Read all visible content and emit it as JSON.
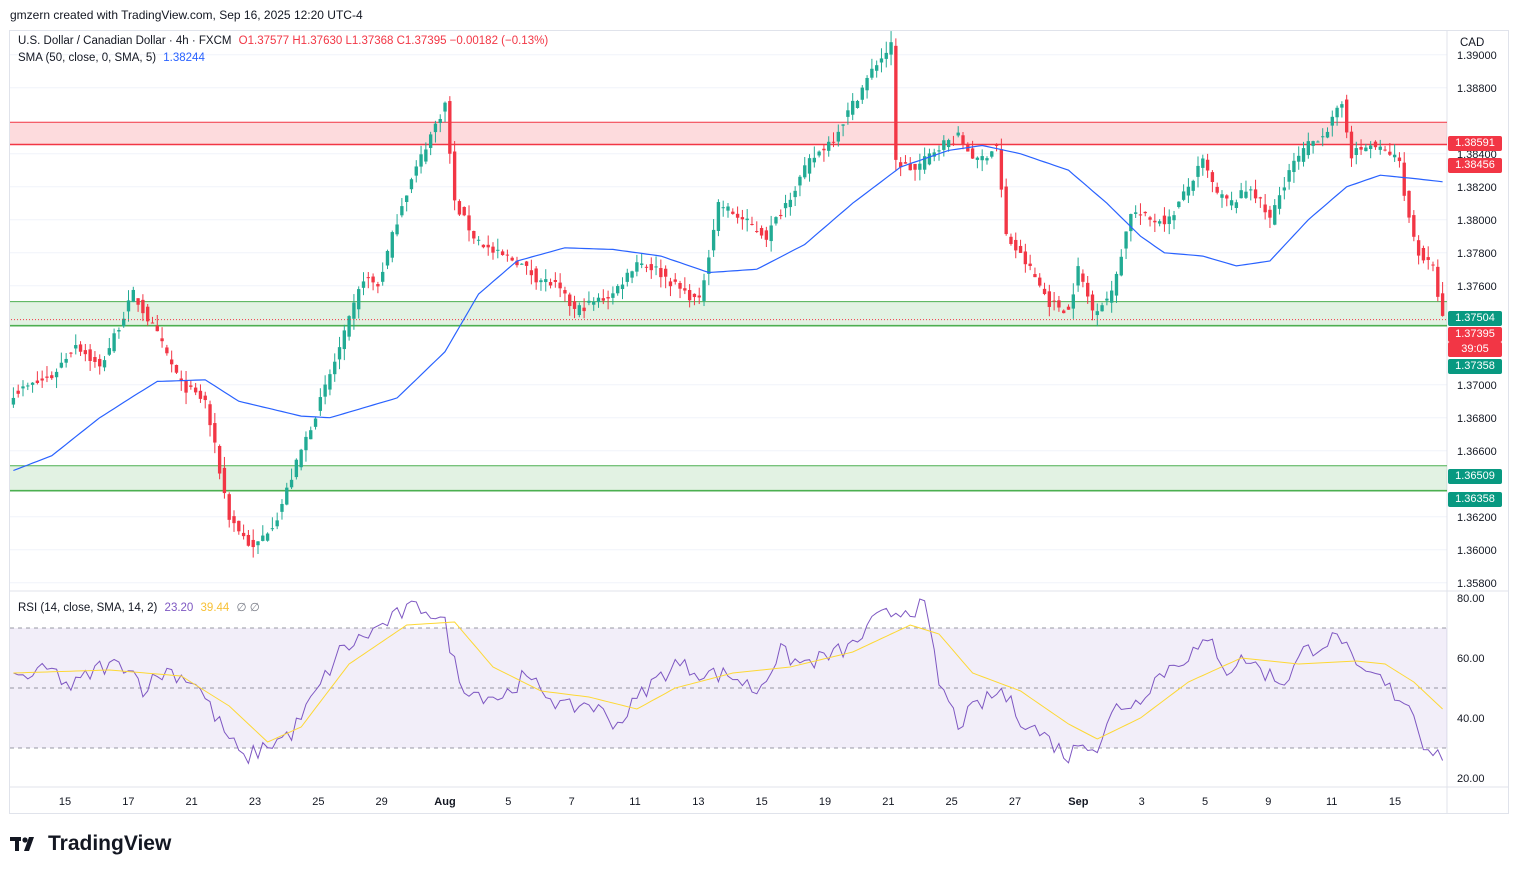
{
  "header": {
    "credit": "gmzern created with TradingView.com, Sep 16, 2025 12:20 UTC-4"
  },
  "legend": {
    "symbol": "U.S. Dollar / Canadian Dollar · 4h · FXCM",
    "ohlc": "O1.37577 H1.37630 L1.37368 C1.37395 −0.00182 (−0.13%)",
    "sma_label": "SMA (50, close, 0, SMA, 5)",
    "sma_value": "1.38244",
    "rsi_label": "RSI (14, close, SMA, 14, 2)",
    "rsi_value": "23.20",
    "rsi_ma_value": "39.44",
    "rsi_extra": "∅ ∅"
  },
  "currency": "CAD",
  "brand": "TradingView",
  "tags": {
    "r1": "1.38591",
    "r2": "1.38456",
    "s1": "1.37504",
    "last": "1.37395",
    "countdown": "39:05",
    "s2": "1.37358",
    "s3": "1.36509",
    "s4": "1.36358"
  },
  "colors": {
    "up": "#22ab94",
    "down": "#f23645",
    "sma": "#2962ff",
    "rsi": "#7e57c2",
    "rsi_ma": "#fdd835"
  },
  "chart_data": {
    "type": "candlestick",
    "price_axis": {
      "ticks": [
        "1.39000",
        "1.38800",
        "1.38400",
        "1.38200",
        "1.38000",
        "1.37800",
        "1.37600",
        "1.37000",
        "1.36800",
        "1.36600",
        "1.36200",
        "1.36000",
        "1.35800"
      ],
      "range": [
        1.3575,
        1.3915
      ]
    },
    "time_axis": [
      "15",
      "17",
      "21",
      "23",
      "25",
      "29",
      "Aug",
      "5",
      "7",
      "11",
      "13",
      "15",
      "19",
      "21",
      "25",
      "27",
      "Sep",
      "3",
      "5",
      "9",
      "11",
      "15"
    ],
    "zones": [
      {
        "kind": "resistance",
        "top": 1.38591,
        "bottom": 1.38456
      },
      {
        "kind": "support",
        "top": 1.37504,
        "bottom": 1.37358
      },
      {
        "kind": "support",
        "top": 1.36509,
        "bottom": 1.36358
      }
    ],
    "close_keypoints": [
      [
        0,
        1.3695
      ],
      [
        8,
        1.3705
      ],
      [
        13,
        1.3725
      ],
      [
        18,
        1.371
      ],
      [
        25,
        1.3755
      ],
      [
        30,
        1.373
      ],
      [
        35,
        1.37
      ],
      [
        40,
        1.369
      ],
      [
        45,
        1.362
      ],
      [
        50,
        1.36
      ],
      [
        55,
        1.362
      ],
      [
        60,
        1.366
      ],
      [
        64,
        1.369
      ],
      [
        69,
        1.373
      ],
      [
        73,
        1.3765
      ],
      [
        76,
        1.376
      ],
      [
        81,
        1.381
      ],
      [
        86,
        1.3845
      ],
      [
        90,
        1.387
      ],
      [
        92,
        1.381
      ],
      [
        96,
        1.379
      ],
      [
        100,
        1.378
      ],
      [
        105,
        1.3775
      ],
      [
        109,
        1.3765
      ],
      [
        113,
        1.376
      ],
      [
        117,
        1.3745
      ],
      [
        121,
        1.375
      ],
      [
        125,
        1.3755
      ],
      [
        130,
        1.3775
      ],
      [
        134,
        1.377
      ],
      [
        138,
        1.376
      ],
      [
        143,
        1.375
      ],
      [
        147,
        1.381
      ],
      [
        152,
        1.38
      ],
      [
        157,
        1.379
      ],
      [
        161,
        1.381
      ],
      [
        166,
        1.3835
      ],
      [
        171,
        1.385
      ],
      [
        175,
        1.387
      ],
      [
        180,
        1.3895
      ],
      [
        183,
        1.3905
      ],
      [
        184,
        1.3835
      ],
      [
        188,
        1.383
      ],
      [
        193,
        1.3845
      ],
      [
        197,
        1.385
      ],
      [
        201,
        1.3835
      ],
      [
        205,
        1.3845
      ],
      [
        207,
        1.379
      ],
      [
        212,
        1.377
      ],
      [
        216,
        1.375
      ],
      [
        220,
        1.3745
      ],
      [
        222,
        1.377
      ],
      [
        225,
        1.3745
      ],
      [
        229,
        1.3755
      ],
      [
        233,
        1.3805
      ],
      [
        237,
        1.38
      ],
      [
        241,
        1.38
      ],
      [
        245,
        1.382
      ],
      [
        248,
        1.3835
      ],
      [
        251,
        1.3815
      ],
      [
        254,
        1.381
      ],
      [
        258,
        1.382
      ],
      [
        262,
        1.38
      ],
      [
        266,
        1.383
      ],
      [
        270,
        1.3845
      ],
      [
        274,
        1.3855
      ],
      [
        277,
        1.387
      ],
      [
        279,
        1.384
      ],
      [
        283,
        1.3845
      ],
      [
        287,
        1.384
      ],
      [
        289,
        1.3835
      ],
      [
        291,
        1.38
      ],
      [
        293,
        1.378
      ],
      [
        296,
        1.377
      ],
      [
        298,
        1.374
      ]
    ],
    "sma50_keypoints": [
      [
        0,
        1.3648
      ],
      [
        8,
        1.3657
      ],
      [
        18,
        1.368
      ],
      [
        25,
        1.3693
      ],
      [
        30,
        1.3702
      ],
      [
        40,
        1.3703
      ],
      [
        47,
        1.369
      ],
      [
        60,
        1.3681
      ],
      [
        66,
        1.368
      ],
      [
        80,
        1.3692
      ],
      [
        90,
        1.372
      ],
      [
        97,
        1.3755
      ],
      [
        105,
        1.3775
      ],
      [
        115,
        1.3783
      ],
      [
        125,
        1.3782
      ],
      [
        135,
        1.3778
      ],
      [
        145,
        1.3768
      ],
      [
        155,
        1.377
      ],
      [
        165,
        1.3785
      ],
      [
        175,
        1.381
      ],
      [
        185,
        1.3832
      ],
      [
        195,
        1.3842
      ],
      [
        202,
        1.3845
      ],
      [
        210,
        1.384
      ],
      [
        220,
        1.383
      ],
      [
        228,
        1.381
      ],
      [
        235,
        1.379
      ],
      [
        240,
        1.378
      ],
      [
        248,
        1.3778
      ],
      [
        255,
        1.3772
      ],
      [
        262,
        1.3775
      ],
      [
        270,
        1.38
      ],
      [
        278,
        1.382
      ],
      [
        285,
        1.3827
      ],
      [
        292,
        1.3825
      ],
      [
        298,
        1.3823
      ]
    ],
    "rsi": {
      "ticks": [
        "80.00",
        "60.00",
        "40.00",
        "20.00"
      ],
      "range": [
        17,
        82
      ],
      "bands": [
        70,
        50,
        30
      ],
      "keypoints": [
        [
          0,
          53
        ],
        [
          8,
          56
        ],
        [
          12,
          50
        ],
        [
          18,
          57
        ],
        [
          24,
          58
        ],
        [
          27,
          50
        ],
        [
          32,
          56
        ],
        [
          38,
          52
        ],
        [
          43,
          38
        ],
        [
          48,
          26
        ],
        [
          52,
          30
        ],
        [
          58,
          35
        ],
        [
          63,
          48
        ],
        [
          68,
          62
        ],
        [
          74,
          68
        ],
        [
          78,
          72
        ],
        [
          82,
          76
        ],
        [
          86,
          77
        ],
        [
          90,
          71
        ],
        [
          93,
          52
        ],
        [
          97,
          48
        ],
        [
          102,
          47
        ],
        [
          106,
          53
        ],
        [
          110,
          50
        ],
        [
          115,
          43
        ],
        [
          120,
          45
        ],
        [
          126,
          38
        ],
        [
          132,
          50
        ],
        [
          138,
          58
        ],
        [
          144,
          55
        ],
        [
          150,
          54
        ],
        [
          155,
          49
        ],
        [
          160,
          62
        ],
        [
          164,
          58
        ],
        [
          169,
          60
        ],
        [
          175,
          64
        ],
        [
          180,
          73
        ],
        [
          185,
          76
        ],
        [
          190,
          77
        ],
        [
          193,
          52
        ],
        [
          197,
          38
        ],
        [
          201,
          44
        ],
        [
          206,
          49
        ],
        [
          210,
          40
        ],
        [
          215,
          34
        ],
        [
          220,
          27
        ],
        [
          223,
          33
        ],
        [
          226,
          30
        ],
        [
          230,
          44
        ],
        [
          234,
          45
        ],
        [
          238,
          53
        ],
        [
          242,
          58
        ],
        [
          246,
          62
        ],
        [
          250,
          65
        ],
        [
          253,
          56
        ],
        [
          257,
          60
        ],
        [
          261,
          55
        ],
        [
          265,
          52
        ],
        [
          269,
          62
        ],
        [
          273,
          65
        ],
        [
          277,
          67
        ],
        [
          280,
          55
        ],
        [
          284,
          54
        ],
        [
          288,
          48
        ],
        [
          291,
          45
        ],
        [
          294,
          32
        ],
        [
          297,
          28
        ]
      ],
      "ma_keypoints": [
        [
          0,
          55
        ],
        [
          20,
          56
        ],
        [
          35,
          54
        ],
        [
          45,
          44
        ],
        [
          53,
          32
        ],
        [
          60,
          37
        ],
        [
          70,
          58
        ],
        [
          82,
          71
        ],
        [
          92,
          72
        ],
        [
          100,
          57
        ],
        [
          110,
          49
        ],
        [
          120,
          47
        ],
        [
          130,
          43
        ],
        [
          138,
          50
        ],
        [
          150,
          55
        ],
        [
          162,
          57
        ],
        [
          175,
          62
        ],
        [
          187,
          71
        ],
        [
          193,
          68
        ],
        [
          200,
          55
        ],
        [
          210,
          49
        ],
        [
          220,
          38
        ],
        [
          226,
          33
        ],
        [
          235,
          40
        ],
        [
          245,
          52
        ],
        [
          256,
          60
        ],
        [
          268,
          58
        ],
        [
          280,
          59
        ],
        [
          286,
          58
        ],
        [
          292,
          52
        ],
        [
          298,
          43
        ]
      ]
    }
  }
}
